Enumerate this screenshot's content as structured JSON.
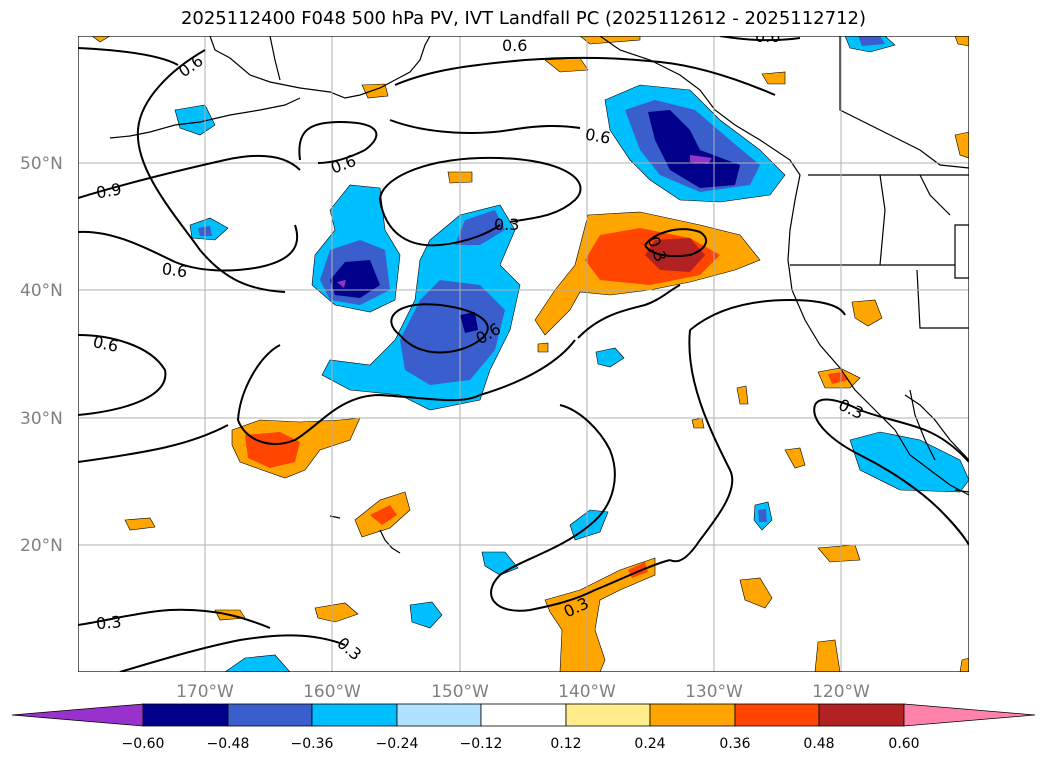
{
  "title": "2025112400 F048 500 hPa PV, IVT Landfall PC (2025112612 - 2025112712)",
  "map": {
    "lat_labels": [
      "50°N",
      "40°N",
      "30°N",
      "20°N"
    ],
    "lon_labels": [
      "170°W",
      "160°W",
      "150°W",
      "140°W",
      "130°W",
      "120°W"
    ],
    "contour_labels": [
      "0.6",
      "0.6",
      "0.6",
      "0.6",
      "0.9",
      "0.6",
      "0.6",
      "0.6",
      "0.3",
      "0.3",
      "0.6",
      "0.3",
      "0.3",
      "0.3",
      "0.3",
      "0.6"
    ],
    "gridlines": true
  },
  "colorbar": {
    "ticks": [
      "−0.60",
      "−0.48",
      "−0.36",
      "−0.24",
      "−0.12",
      "0.12",
      "0.24",
      "0.36",
      "0.48",
      "0.60"
    ],
    "colors": [
      "#9932cc",
      "#00008b",
      "#3a5fcd",
      "#00bfff",
      "#b0e2ff",
      "#ffffff",
      "#ffec8b",
      "#ffa500",
      "#ff4500",
      "#b22222",
      "#ff82ab"
    ],
    "extend": "both"
  }
}
